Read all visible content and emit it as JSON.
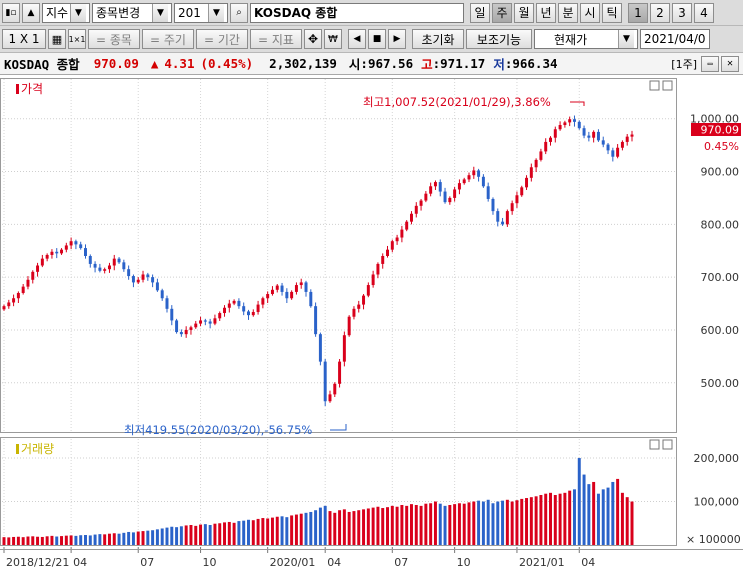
{
  "toolbar1": {
    "market_type": "지수",
    "change_item": "종목변경",
    "code": "201",
    "index_name": "KOSDAQ 종합",
    "periods": [
      "일",
      "주",
      "월",
      "년",
      "분",
      "시",
      "틱"
    ],
    "active_period": "주",
    "numbers": [
      "1",
      "2",
      "3",
      "4"
    ]
  },
  "toolbar2": {
    "ratio": "1 X 1",
    "menus": [
      "= 종목",
      "= 주기",
      "= 기간",
      "= 지표"
    ],
    "reset": "초기화",
    "aux": "보조기능",
    "price_type": "현재가",
    "date": "2021/04/0"
  },
  "quote": {
    "name": "KOSDAQ 종합",
    "price": "970.09",
    "change_symbol": "▲",
    "change": "4.31",
    "change_pct": "(0.45%)",
    "volume": "2,302,139",
    "open_label": "시",
    "open": "967.56",
    "high_label": "고",
    "high": "971.17",
    "low_label": "저",
    "low": "966.34",
    "period_label": "[1주]"
  },
  "chart_data": {
    "type": "candlestick",
    "panels": [
      {
        "name": "가격",
        "y_ticks": [
          "500.00",
          "600.00",
          "700.00",
          "800.00",
          "900.00",
          "1,000.00"
        ],
        "ylim": [
          420,
          1060
        ],
        "current_price": "970.09",
        "current_change": "0.45%",
        "annotations": [
          {
            "text": "최고1,007.52(2021/01/29),3.86%",
            "date": "2021-01-29",
            "value": 1007.52
          },
          {
            "text": "최저419.55(2020/03/20),-56.75%",
            "date": "2020-03-20",
            "value": 419.55
          }
        ]
      },
      {
        "name": "거래량",
        "y_ticks": [
          "100,000",
          "200,000"
        ],
        "unit": "× 100000",
        "ylim": [
          0,
          230000
        ]
      }
    ],
    "x_labels": [
      "2018/12/21",
      "04",
      "07",
      "10",
      "2020/01",
      "04",
      "07",
      "10",
      "2021/01",
      "04"
    ],
    "up_color": "#d9001b",
    "down_color": "#2a62c9",
    "close": [
      645,
      652,
      660,
      670,
      682,
      695,
      710,
      722,
      735,
      742,
      748,
      745,
      752,
      760,
      768,
      762,
      755,
      740,
      725,
      718,
      712,
      715,
      722,
      735,
      728,
      715,
      702,
      690,
      695,
      705,
      700,
      690,
      675,
      660,
      640,
      618,
      596,
      592,
      600,
      605,
      612,
      618,
      616,
      612,
      622,
      632,
      642,
      650,
      655,
      645,
      635,
      628,
      634,
      648,
      660,
      668,
      676,
      684,
      672,
      660,
      672,
      685,
      690,
      672,
      645,
      592,
      540,
      465,
      478,
      498,
      540,
      590,
      625,
      640,
      648,
      665,
      685,
      705,
      725,
      740,
      752,
      768,
      775,
      790,
      805,
      820,
      835,
      845,
      858,
      872,
      880,
      862,
      842,
      850,
      866,
      878,
      885,
      893,
      902,
      890,
      872,
      848,
      825,
      805,
      800,
      825,
      840,
      855,
      870,
      888,
      908,
      922,
      938,
      956,
      964,
      980,
      988,
      993,
      999,
      994,
      982,
      968,
      964,
      975,
      959,
      951,
      940,
      928,
      945,
      956,
      966,
      970
    ],
    "volume": [
      18000,
      17500,
      18500,
      19000,
      18000,
      19500,
      20000,
      19000,
      18500,
      20000,
      21000,
      19500,
      20500,
      21500,
      22000,
      21000,
      22500,
      23000,
      22000,
      24000,
      25000,
      24500,
      26000,
      27000,
      26000,
      28000,
      30000,
      29000,
      31000,
      32000,
      33000,
      34000,
      36000,
      38000,
      40000,
      42000,
      41000,
      43000,
      45000,
      46000,
      44000,
      47000,
      48000,
      46000,
      49000,
      50000,
      52000,
      53000,
      51000,
      55000,
      56000,
      58000,
      57000,
      60000,
      62000,
      61000,
      63000,
      65000,
      66000,
      64000,
      68000,
      70000,
      72000,
      74000,
      76000,
      80000,
      86000,
      90000,
      78000,
      74000,
      80000,
      82000,
      76000,
      78000,
      80000,
      82000,
      84000,
      86000,
      88000,
      85000,
      87000,
      90000,
      88000,
      92000,
      90000,
      94000,
      92000,
      90000,
      95000,
      96000,
      100000,
      95000,
      90000,
      92000,
      94000,
      96000,
      95000,
      98000,
      100000,
      102000,
      100000,
      104000,
      96000,
      100000,
      102000,
      104000,
      100000,
      103000,
      106000,
      108000,
      110000,
      112000,
      115000,
      118000,
      120000,
      115000,
      118000,
      120000,
      125000,
      128000,
      200000,
      162000,
      140000,
      145000,
      118000,
      128000,
      132000,
      145000,
      152000,
      120000,
      110000,
      100000
    ]
  }
}
